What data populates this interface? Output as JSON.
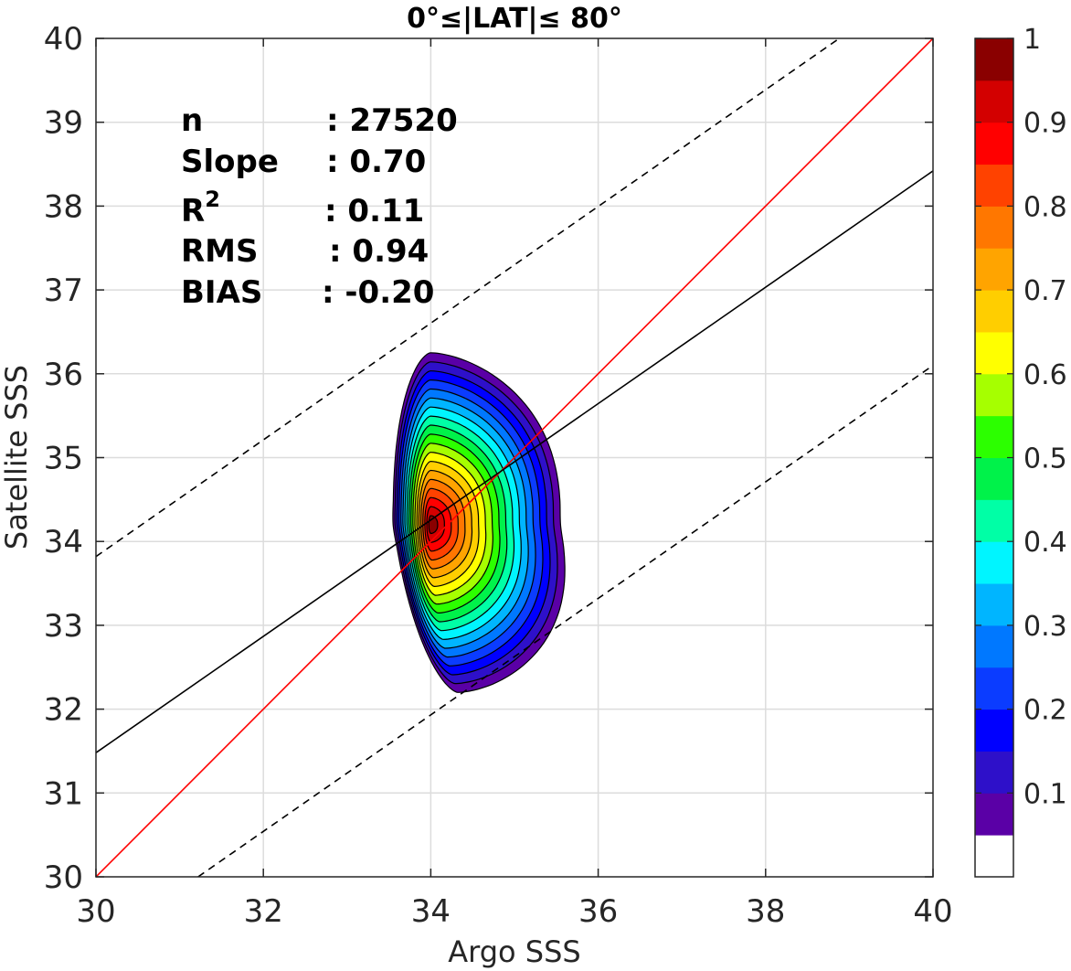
{
  "chart_data": {
    "type": "contour",
    "title": "0°≤|LAT|≤ 80°",
    "xlabel": "Argo SSS",
    "ylabel": "Satellite SSS",
    "xlim": [
      30,
      40
    ],
    "ylim": [
      30,
      40
    ],
    "x_ticks": [
      "30",
      "32",
      "34",
      "36",
      "38",
      "40"
    ],
    "y_ticks": [
      "30",
      "31",
      "32",
      "33",
      "34",
      "35",
      "36",
      "37",
      "38",
      "39",
      "40"
    ],
    "grid": true,
    "stats": [
      {
        "label": "n",
        "sep": ":",
        "value": "27520"
      },
      {
        "label": "Slope",
        "sep": ":",
        "value": "0.70"
      },
      {
        "label": "R",
        "sup": "2",
        "sep": ":",
        "value": "0.11"
      },
      {
        "label": "RMS",
        "sep": ":",
        "value": "0.94"
      },
      {
        "label": "BIAS",
        "sep": ":",
        "value": "-0.20"
      }
    ],
    "lines": [
      {
        "name": "one-to-one",
        "color": "#ff0000",
        "style": "solid",
        "points": [
          [
            30,
            30
          ],
          [
            40,
            40
          ]
        ]
      },
      {
        "name": "regression",
        "color": "#000000",
        "style": "solid",
        "points": [
          [
            30,
            31.48
          ],
          [
            40,
            38.42
          ]
        ]
      },
      {
        "name": "upper-bound",
        "color": "#000000",
        "style": "dashed",
        "points": [
          [
            30,
            33.82
          ],
          [
            38.88,
            40
          ]
        ]
      },
      {
        "name": "lower-bound",
        "color": "#000000",
        "style": "dashed",
        "points": [
          [
            31.22,
            30
          ],
          [
            40,
            36.1
          ]
        ]
      }
    ],
    "density_peak": {
      "x": 34.0,
      "y": 34.2
    },
    "colorbar": {
      "range": [
        0,
        1
      ],
      "tick_labels": [
        "0.1",
        "0.2",
        "0.3",
        "0.4",
        "0.5",
        "0.6",
        "0.7",
        "0.8",
        "0.9",
        "1"
      ],
      "tick_values": [
        0.1,
        0.2,
        0.3,
        0.4,
        0.5,
        0.6,
        0.7,
        0.8,
        0.9,
        1.0
      ],
      "colors": [
        "#ffffff",
        "#5a00a6",
        "#2e10c9",
        "#0000ff",
        "#0b3cff",
        "#0078ff",
        "#00b5ff",
        "#00f5ff",
        "#00ffa6",
        "#00f24a",
        "#2cff00",
        "#a6ff00",
        "#ffff00",
        "#ffce00",
        "#ffa400",
        "#ff7700",
        "#ff4200",
        "#ff0000",
        "#d30000",
        "#8a0000"
      ]
    }
  }
}
